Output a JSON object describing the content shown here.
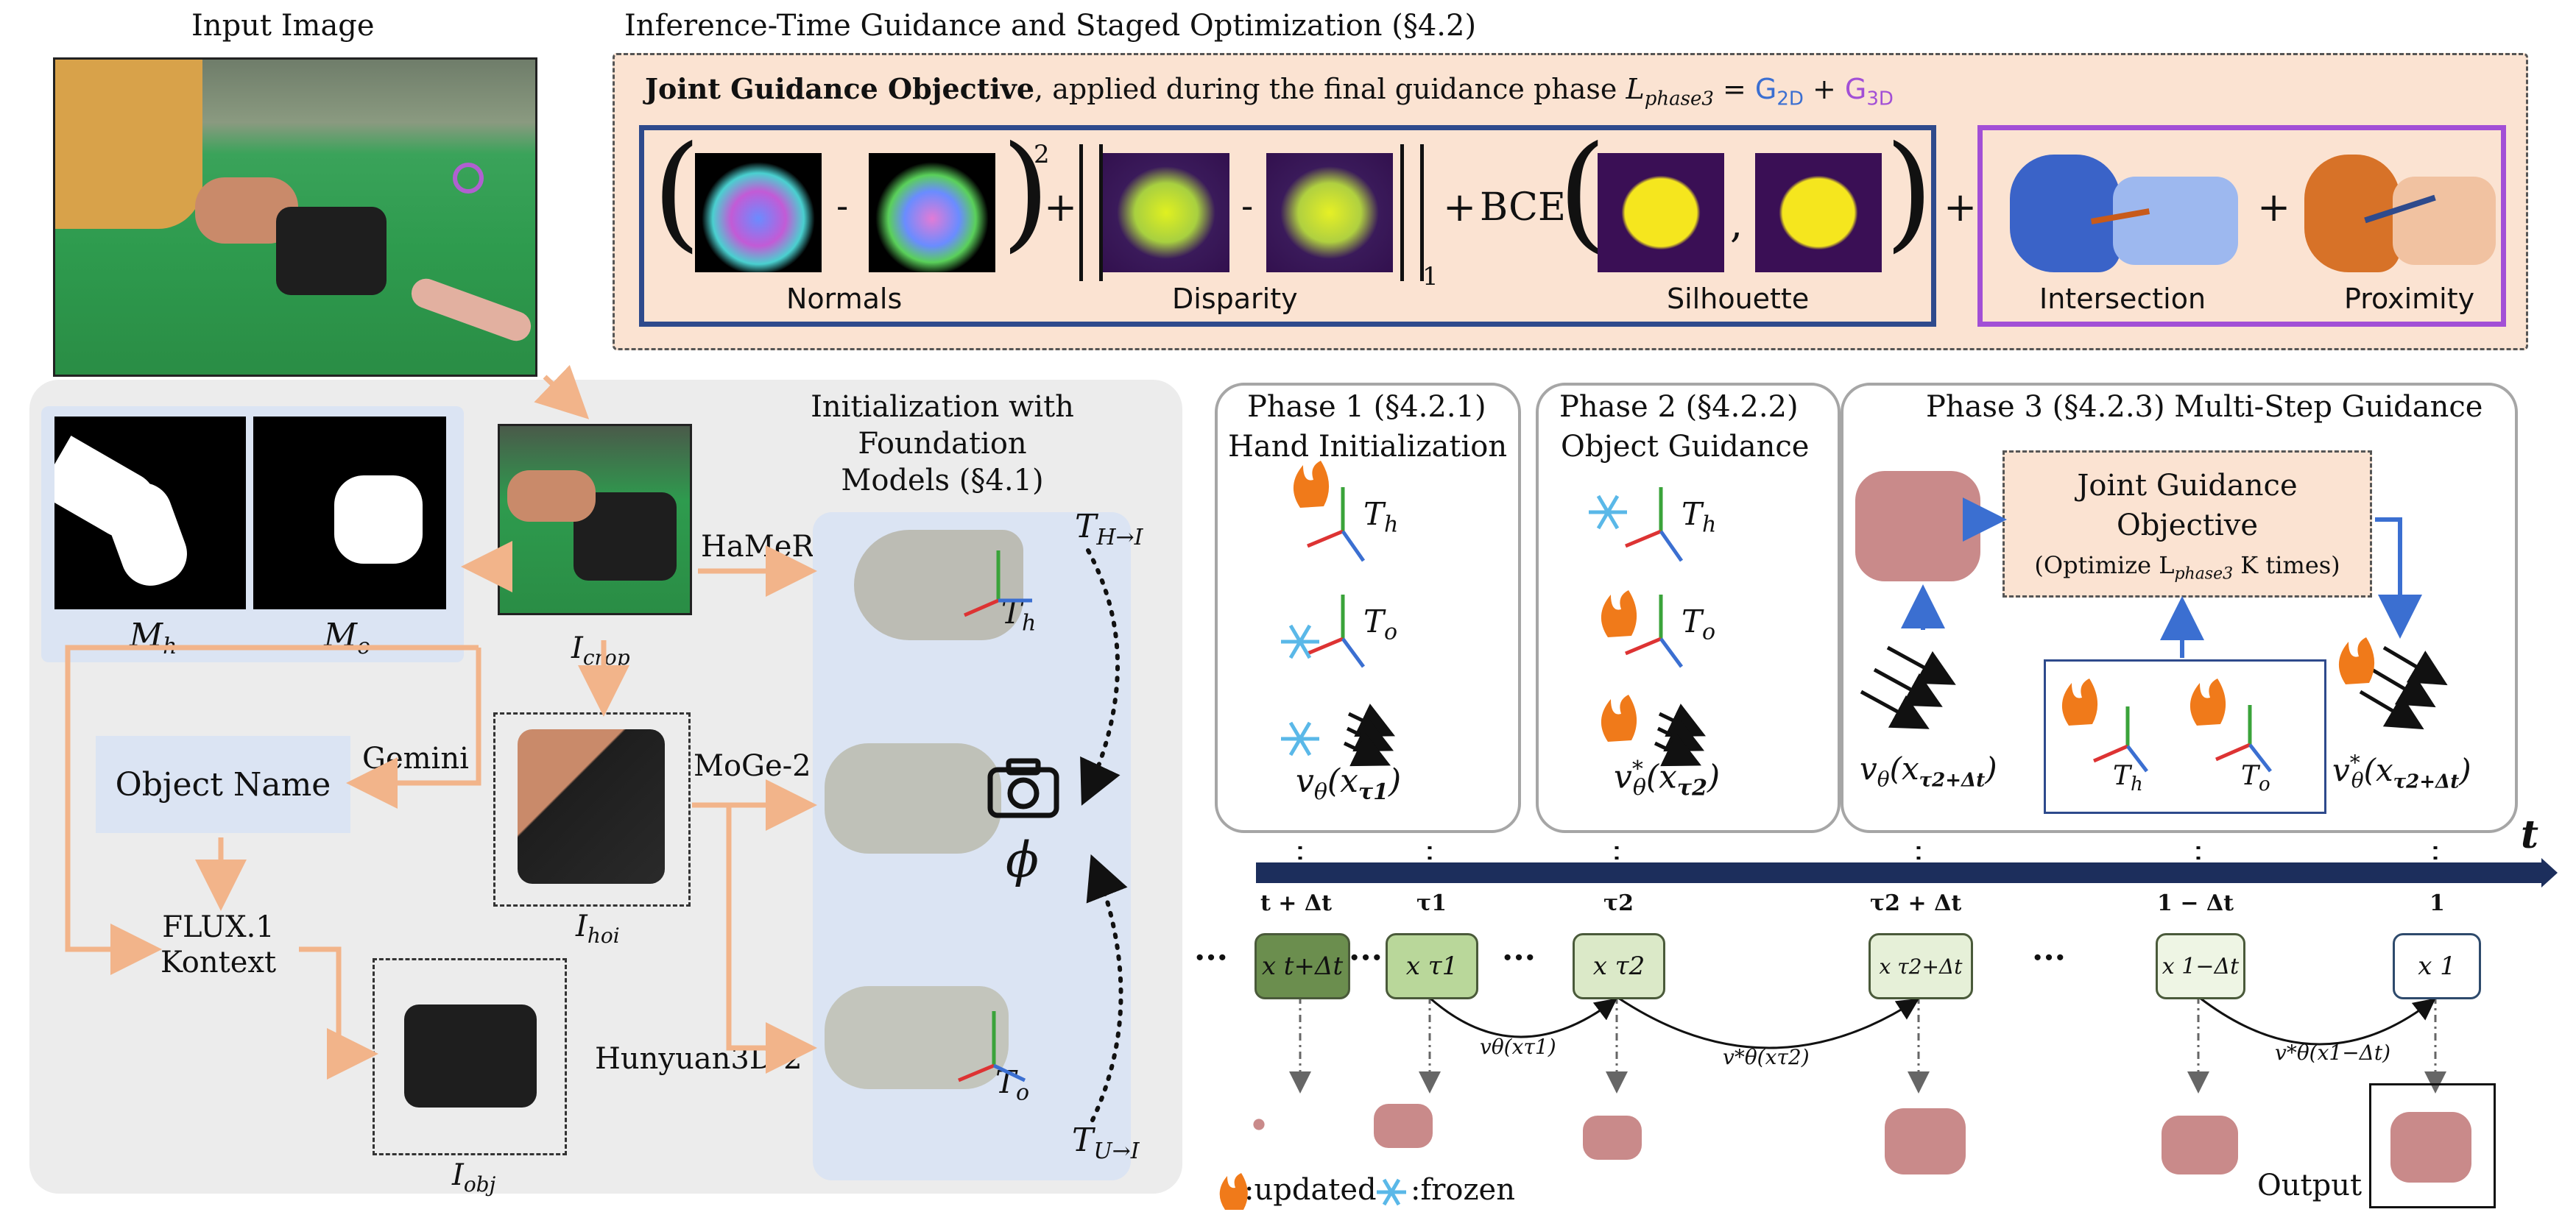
{
  "input_image": {
    "title": "Input Image"
  },
  "guidance": {
    "title": "Inference-Time Guidance and Staged Optimization (§4.2)",
    "objective_bold": "Joint Guidance Objective",
    "objective_rest": ", applied during the final guidance phase ",
    "loss_symbol": "L",
    "loss_sub": "phase3",
    "equals": " = ",
    "g2d": "G",
    "g2d_sub": "2D",
    "plus": " + ",
    "g3d": "G",
    "g3d_sub": "3D",
    "normals_label": "Normals",
    "disparity_label": "Disparity",
    "silhouette_label": "Silhouette",
    "intersection_label": "Intersection",
    "proximity_label": "Proximity",
    "minus": "-",
    "square": "2",
    "norm_sub": "1",
    "bce": "BCE",
    "comma": ",",
    "plus_sign": "+"
  },
  "init": {
    "title_line1": "Initialization with",
    "title_line2": "Foundation",
    "title_line3": "Models (§4.1)",
    "hamer": "HaMeR",
    "moge": "MoGe-2",
    "hunyuan": "Hunyuan3D-2",
    "gemini": "Gemini",
    "object_name": "Object Name",
    "flux_line1": "FLUX.1",
    "flux_line2": "Kontext",
    "mask_h": "M",
    "mask_h_sub": "h",
    "mask_o": "M",
    "mask_o_sub": "o",
    "i_crop": "I",
    "i_crop_sub": "crop",
    "i_hoi": "I",
    "i_hoi_sub": "hoi",
    "i_obj": "I",
    "i_obj_sub": "obj",
    "t_h": "T",
    "t_h_sub": "h",
    "t_o": "T",
    "t_o_sub": "o",
    "t_hi": "T",
    "t_hi_sub": "H→I",
    "t_ui": "T",
    "t_ui_sub": "U→I",
    "phi": "ϕ"
  },
  "phase1": {
    "title": "Phase 1 (§4.2.1)",
    "subtitle": "Hand Initialization",
    "formula": "v",
    "formula_sub": "θ",
    "formula_arg": "(x",
    "formula_arg_sub": "τ1",
    "formula_close": ")"
  },
  "phase2": {
    "title": "Phase 2 (§4.2.2)",
    "subtitle": "Object Guidance",
    "formula": "v",
    "formula_sup": "*",
    "formula_sub": "θ",
    "formula_arg": "(x",
    "formula_arg_sub": "τ2",
    "formula_close": ")"
  },
  "phase3": {
    "title": "Phase 3 (§4.2.3) Multi-Step Guidance",
    "box_line1": "Joint Guidance",
    "box_line2": "Objective",
    "box_line3": "(Optimize L",
    "box_line3_sub": "phase3",
    "box_line3_end": " K times)",
    "formula_left": "v",
    "formula_left_sub": "θ",
    "formula_left_arg": "(x",
    "formula_left_arg_sub": "τ2+Δt",
    "formula_right": "v",
    "formula_right_sup": "*",
    "formula_right_sub": "θ",
    "formula_right_arg": "(x",
    "formula_right_arg_sub": "τ2+Δt",
    "close": ")"
  },
  "timeline": {
    "axis_label": "t",
    "ticks": [
      "t + Δt",
      "τ1",
      "τ2",
      "τ2 + Δt",
      "1 − Δt",
      "1"
    ],
    "nodes": [
      "x t+Δt",
      "x τ1",
      "x τ2",
      "x τ2+Δt",
      "x 1−Δt",
      "x 1"
    ],
    "ellipsis": "···",
    "arc1": "vθ(xτ1)",
    "arc2": "v*θ(xτ2)",
    "arc3": "v*θ(x1−Δt)",
    "output": "Output"
  },
  "legend": {
    "updated": ":updated",
    "frozen": ":frozen",
    "fire_icon": "fire-icon",
    "snow_icon": "snowflake-icon"
  },
  "colors": {
    "orange_arrow": "#f2b48a",
    "blue_box": "#2e4a8c",
    "purple_box": "#a24fd6",
    "peach": "#fbe3d2",
    "gray_panel": "#ececec",
    "light_blue": "#dbe4f3",
    "timeline": "#1c2e5c",
    "g2d": "#3b6fd1",
    "g3d": "#a24fd6"
  }
}
